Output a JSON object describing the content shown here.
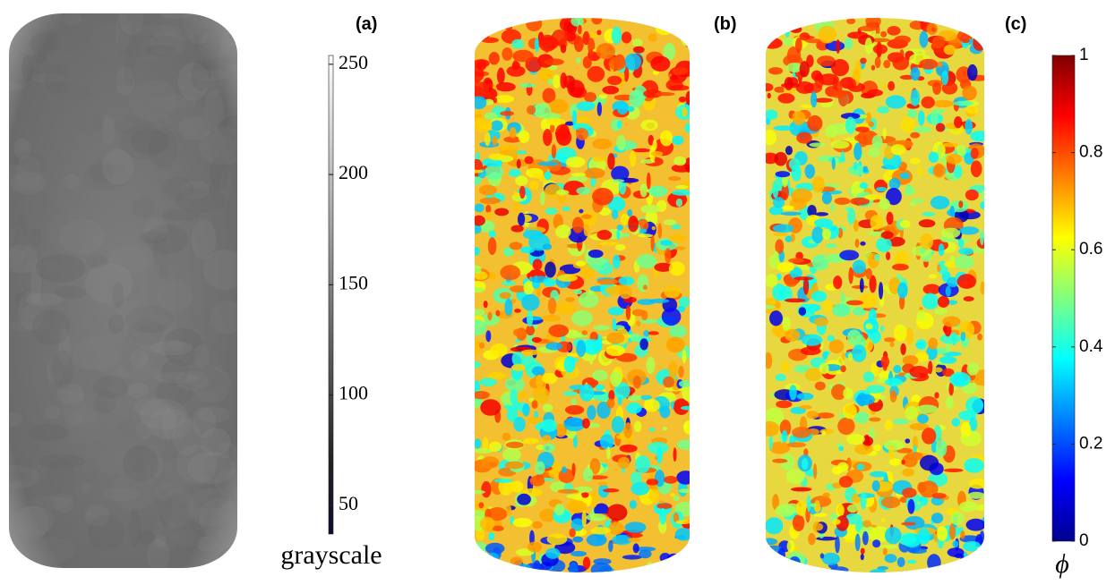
{
  "panels": [
    {
      "label": "(a)"
    },
    {
      "label": "(b)"
    },
    {
      "label": "(c)"
    }
  ],
  "colorbars": [
    {
      "label": "grayscale",
      "lim": [
        37,
        254
      ],
      "ticks": [
        50,
        100,
        150,
        200,
        250
      ]
    },
    {
      "label": "ϕ",
      "lim": [
        0,
        1
      ],
      "ticks": [
        0,
        0.2,
        0.4,
        0.6,
        0.8,
        1
      ]
    }
  ]
}
